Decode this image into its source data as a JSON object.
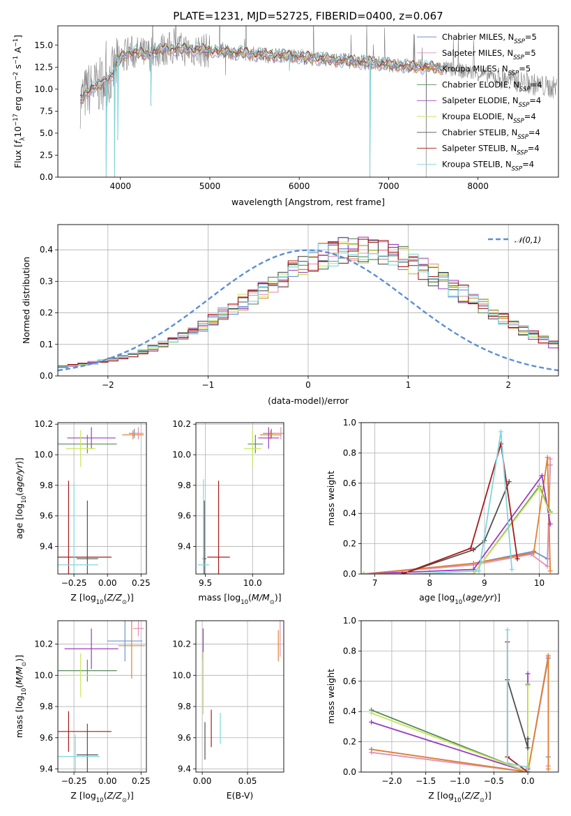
{
  "colors": {
    "chabrier_miles": "#6f8fd0",
    "salpeter_miles": "#e58fb2",
    "kroupa_miles": "#e0812f",
    "chabrier_elodie": "#5a8a5a",
    "salpeter_elodie": "#9a3cbf",
    "kroupa_elodie": "#c8e65a",
    "chabrier_stelib": "#505050",
    "salpeter_stelib": "#a81818",
    "kroupa_stelib": "#7fd6de",
    "normal": "#5b8ed6",
    "grid": "#b0b0b0"
  },
  "chart_data": [
    {
      "type": "line",
      "title": "PLATE=1231, MJD=52725, FIBERID=0400, z=0.067",
      "xlabel": "wavelength [Angstrom, rest frame]",
      "ylabel": "Flux [f_λ 10^-17 erg cm^-2 s^-1 A^-1]",
      "xlim": [
        3300,
        8900
      ],
      "ylim": [
        0,
        17.2
      ],
      "xticks": [
        "4000",
        "5000",
        "6000",
        "7000",
        "8000"
      ],
      "yticks": [
        "0.0",
        "2.5",
        "5.0",
        "7.5",
        "10.0",
        "12.5",
        "15.0"
      ],
      "grid": false,
      "legend_position": "upper-right",
      "legend": [
        {
          "label": "Chabrier MILES, N_SSP=5",
          "color_key": "chabrier_miles"
        },
        {
          "label": "Salpeter MILES, N_SSP=5",
          "color_key": "salpeter_miles"
        },
        {
          "label": "Kroupa MILES, N_SSP=5",
          "color_key": "kroupa_miles"
        },
        {
          "label": "Chabrier ELODIE, N_SSP=4",
          "color_key": "chabrier_elodie"
        },
        {
          "label": "Salpeter ELODIE, N_SSP=4",
          "color_key": "salpeter_elodie"
        },
        {
          "label": "Kroupa ELODIE, N_SSP=4",
          "color_key": "kroupa_elodie"
        },
        {
          "label": "Chabrier STELIB, N_SSP=4",
          "color_key": "chabrier_stelib"
        },
        {
          "label": "Salpeter STELIB, N_SSP=4",
          "color_key": "salpeter_stelib"
        },
        {
          "label": "Kroupa STELIB, N_SSP=4",
          "color_key": "kroupa_stelib"
        }
      ],
      "continuum": [
        [
          3550,
          8.7
        ],
        [
          3650,
          10.0
        ],
        [
          3750,
          10.3
        ],
        [
          3900,
          11.5
        ],
        [
          4000,
          13.5
        ],
        [
          4100,
          14.2
        ],
        [
          4300,
          13.9
        ],
        [
          4500,
          14.6
        ],
        [
          4800,
          14.5
        ],
        [
          5200,
          14.2
        ],
        [
          5600,
          13.9
        ],
        [
          6000,
          13.7
        ],
        [
          6400,
          13.3
        ],
        [
          6800,
          13.0
        ],
        [
          7200,
          12.6
        ],
        [
          7600,
          12.4
        ],
        [
          8000,
          11.8
        ],
        [
          8400,
          11.0
        ],
        [
          8800,
          10.2
        ]
      ],
      "absorption_dips": [
        [
          3840,
          0.0
        ],
        [
          3934,
          0.0
        ],
        [
          3970,
          4.2
        ],
        [
          4340,
          8.1
        ],
        [
          5175,
          11.6
        ],
        [
          5890,
          12.1
        ],
        [
          6790,
          0.0
        ],
        [
          7420,
          0.0
        ]
      ]
    },
    {
      "type": "bar",
      "subtype": "step-histogram",
      "xlabel": "(data-model)/error",
      "ylabel": "Normed distribution",
      "xlim": [
        -2.5,
        2.5
      ],
      "ylim": [
        0,
        0.48
      ],
      "xticks": [
        "−2",
        "−1",
        "0",
        "1",
        "2"
      ],
      "yticks": [
        "0.0",
        "0.1",
        "0.2",
        "0.3",
        "0.4"
      ],
      "grid": true,
      "legend_position": "upper-right",
      "reference_curve_label": "𝒩(0,1)",
      "bin_width": 0.1,
      "bin_start": -2.5,
      "base_counts": [
        0.03,
        0.033,
        0.037,
        0.042,
        0.047,
        0.053,
        0.06,
        0.068,
        0.077,
        0.088,
        0.1,
        0.112,
        0.126,
        0.141,
        0.158,
        0.176,
        0.195,
        0.215,
        0.235,
        0.255,
        0.275,
        0.295,
        0.315,
        0.335,
        0.352,
        0.367,
        0.38,
        0.39,
        0.397,
        0.4,
        0.4,
        0.398,
        0.392,
        0.383,
        0.37,
        0.355,
        0.338,
        0.32,
        0.3,
        0.28,
        0.26,
        0.24,
        0.22,
        0.2,
        0.18,
        0.162,
        0.145,
        0.13,
        0.115,
        0.1,
        0.088
      ]
    },
    {
      "type": "scatter",
      "subtype": "errorbar",
      "xlabel": "Z [log10(Z/Z⊙)]",
      "ylabel": "age [log10(age/yr)]",
      "xlim": [
        -0.37,
        0.29
      ],
      "ylim": [
        9.22,
        10.21
      ],
      "xticks": [
        "−0.25",
        "0.00",
        "0.25"
      ],
      "yticks": [
        "9.4",
        "9.6",
        "9.8",
        "10.0",
        "10.2"
      ],
      "grid": true,
      "points": [
        {
          "model": "chabrier_miles",
          "x": 0.2,
          "y": 10.14,
          "xerr": 0.04,
          "yerr": 0.03
        },
        {
          "model": "salpeter_miles",
          "x": 0.23,
          "y": 10.14,
          "xerr": 0.04,
          "yerr": 0.04
        },
        {
          "model": "kroupa_miles",
          "x": 0.19,
          "y": 10.13,
          "xerr": 0.08,
          "yerr": 0.03
        },
        {
          "model": "chabrier_elodie",
          "x": -0.15,
          "y": 10.07,
          "xerr": 0.22,
          "yerr": 0.06
        },
        {
          "model": "salpeter_elodie",
          "x": -0.12,
          "y": 10.11,
          "xerr": 0.18,
          "yerr": 0.07
        },
        {
          "model": "kroupa_elodie",
          "x": -0.2,
          "y": 10.04,
          "xerr": 0.11,
          "yerr": 0.12
        },
        {
          "model": "chabrier_stelib",
          "x": -0.15,
          "y": 9.32,
          "xerr": 0.08,
          "yerr": 0.38
        },
        {
          "model": "salpeter_stelib",
          "x": -0.29,
          "y": 9.33,
          "xerr": 0.32,
          "yerr": 0.5
        },
        {
          "model": "kroupa_stelib",
          "x": -0.25,
          "y": 9.28,
          "xerr": 0.18,
          "yerr": 0.54
        }
      ]
    },
    {
      "type": "scatter",
      "subtype": "errorbar",
      "xlabel": "mass [log10(M/M⊙)]",
      "ylabel": "",
      "xlim": [
        9.4,
        10.33
      ],
      "ylim": [
        9.22,
        10.21
      ],
      "xticks": [
        "9.5",
        "10.0"
      ],
      "yticks": [
        "9.4",
        "9.6",
        "9.8",
        "10.0",
        "10.2"
      ],
      "grid": true,
      "points": [
        {
          "model": "chabrier_miles",
          "x": 10.2,
          "y": 10.14,
          "xerr": 0.09,
          "yerr": 0.03
        },
        {
          "model": "salpeter_miles",
          "x": 10.3,
          "y": 10.14,
          "xerr": 0.08,
          "yerr": 0.04
        },
        {
          "model": "kroupa_miles",
          "x": 10.19,
          "y": 10.13,
          "xerr": 0.11,
          "yerr": 0.03
        },
        {
          "model": "chabrier_elodie",
          "x": 10.03,
          "y": 10.07,
          "xerr": 0.08,
          "yerr": 0.06
        },
        {
          "model": "salpeter_elodie",
          "x": 10.17,
          "y": 10.11,
          "xerr": 0.11,
          "yerr": 0.07
        },
        {
          "model": "kroupa_elodie",
          "x": 10.0,
          "y": 10.04,
          "xerr": 0.09,
          "yerr": 0.12
        },
        {
          "model": "chabrier_stelib",
          "x": 9.49,
          "y": 9.32,
          "xerr": 0.02,
          "yerr": 0.38
        },
        {
          "model": "salpeter_stelib",
          "x": 9.64,
          "y": 9.33,
          "xerr": 0.12,
          "yerr": 0.5
        },
        {
          "model": "kroupa_stelib",
          "x": 9.48,
          "y": 9.28,
          "xerr": 0.06,
          "yerr": 0.56
        }
      ]
    },
    {
      "type": "line",
      "xlabel": "age [log10(age/yr)]",
      "ylabel": "mass weight",
      "xlim": [
        6.75,
        10.35
      ],
      "ylim": [
        0,
        1.0
      ],
      "xticks": [
        "7",
        "8",
        "9",
        "10"
      ],
      "yticks": [
        "0.0",
        "0.2",
        "0.4",
        "0.6",
        "0.8",
        "1.0"
      ],
      "grid": true,
      "series": [
        {
          "model": "chabrier_miles",
          "x": [
            6.8,
            8.8,
            9.9,
            10.15,
            10.2
          ],
          "y": [
            0.0,
            0.07,
            0.15,
            0.1,
            0.72
          ]
        },
        {
          "model": "salpeter_miles",
          "x": [
            6.8,
            8.8,
            9.85,
            10.15,
            10.2
          ],
          "y": [
            0.0,
            0.06,
            0.13,
            0.05,
            0.76
          ]
        },
        {
          "model": "kroupa_miles",
          "x": [
            6.8,
            8.8,
            9.9,
            10.15,
            10.2
          ],
          "y": [
            0.0,
            0.07,
            0.14,
            0.77,
            0.02
          ]
        },
        {
          "model": "chabrier_elodie",
          "x": [
            6.8,
            8.8,
            10.0,
            10.2
          ],
          "y": [
            0.0,
            0.0,
            0.58,
            0.41
          ]
        },
        {
          "model": "salpeter_elodie",
          "x": [
            6.8,
            8.8,
            10.05,
            10.2
          ],
          "y": [
            0.0,
            0.03,
            0.65,
            0.33
          ]
        },
        {
          "model": "kroupa_elodie",
          "x": [
            6.8,
            8.8,
            10.0,
            10.2
          ],
          "y": [
            0.0,
            0.0,
            0.57,
            0.4
          ]
        },
        {
          "model": "chabrier_stelib",
          "x": [
            7.5,
            8.8,
            9.0,
            9.45
          ],
          "y": [
            0.0,
            0.16,
            0.22,
            0.61
          ]
        },
        {
          "model": "salpeter_stelib",
          "x": [
            7.5,
            8.75,
            9.3,
            9.6
          ],
          "y": [
            0.0,
            0.17,
            0.86,
            0.1
          ]
        },
        {
          "model": "kroupa_stelib",
          "x": [
            7.6,
            8.9,
            9.3,
            9.5
          ],
          "y": [
            0.0,
            0.02,
            0.94,
            0.03
          ]
        }
      ]
    },
    {
      "type": "scatter",
      "subtype": "errorbar",
      "xlabel": "Z [log10(Z/Z⊙)]",
      "ylabel": "mass [log10(M/M⊙)]",
      "xlim": [
        -0.37,
        0.29
      ],
      "ylim": [
        9.38,
        10.35
      ],
      "xticks": [
        "−0.25",
        "0.00",
        "0.25"
      ],
      "yticks": [
        "9.4",
        "9.6",
        "9.8",
        "10.0",
        "10.2"
      ],
      "grid": true,
      "points": [
        {
          "model": "chabrier_miles",
          "x": 0.13,
          "y": 10.22,
          "xerr": 0.13,
          "yerr": 0.13
        },
        {
          "model": "salpeter_miles",
          "x": 0.23,
          "y": 10.3,
          "xerr": 0.04,
          "yerr": 0.05
        },
        {
          "model": "kroupa_miles",
          "x": 0.18,
          "y": 10.19,
          "xerr": 0.1,
          "yerr": 0.21
        },
        {
          "model": "chabrier_elodie",
          "x": -0.15,
          "y": 10.03,
          "xerr": 0.22,
          "yerr": 0.07
        },
        {
          "model": "salpeter_elodie",
          "x": -0.12,
          "y": 10.17,
          "xerr": 0.2,
          "yerr": 0.13
        },
        {
          "model": "kroupa_elodie",
          "x": -0.2,
          "y": 10.0,
          "xerr": 0.11,
          "yerr": 0.14
        },
        {
          "model": "chabrier_stelib",
          "x": -0.15,
          "y": 9.49,
          "xerr": 0.08,
          "yerr": 0.2
        },
        {
          "model": "salpeter_stelib",
          "x": -0.29,
          "y": 9.64,
          "xerr": 0.32,
          "yerr": 0.13
        },
        {
          "model": "kroupa_stelib",
          "x": -0.24,
          "y": 9.48,
          "xerr": 0.18,
          "yerr": 0.14
        }
      ]
    },
    {
      "type": "scatter",
      "subtype": "errorbar",
      "xlabel": "E(B-V)",
      "ylabel": "",
      "xlim": [
        -0.007,
        0.09
      ],
      "ylim": [
        9.38,
        10.35
      ],
      "xticks": [
        "0.00",
        "0.05"
      ],
      "yticks": [
        "9.4",
        "9.6",
        "9.8",
        "10.0",
        "10.2"
      ],
      "grid": true,
      "points": [
        {
          "model": "salpeter_miles",
          "x": 0.086,
          "y": 10.24,
          "xerr": 0.0,
          "yerr": 0.12
        },
        {
          "model": "kroupa_miles",
          "x": 0.084,
          "y": 10.19,
          "xerr": 0.0,
          "yerr": 0.1
        },
        {
          "model": "salpeter_elodie",
          "x": 0.001,
          "y": 10.2,
          "xerr": 0.0,
          "yerr": 0.1
        },
        {
          "model": "kroupa_elodie",
          "x": 0.001,
          "y": 9.95,
          "xerr": 0.0,
          "yerr": 0.2
        },
        {
          "model": "chabrier_stelib",
          "x": 0.003,
          "y": 9.58,
          "xerr": 0.0,
          "yerr": 0.12
        },
        {
          "model": "salpeter_stelib",
          "x": 0.01,
          "y": 9.66,
          "xerr": 0.0,
          "yerr": 0.12
        },
        {
          "model": "kroupa_stelib",
          "x": 0.02,
          "y": 9.66,
          "xerr": 0.0,
          "yerr": 0.1
        }
      ]
    },
    {
      "type": "line",
      "xlabel": "Z [log10(Z/Z⊙)]",
      "ylabel": "mass weight",
      "xlim": [
        -2.45,
        0.45
      ],
      "ylim": [
        0,
        1.0
      ],
      "xticks": [
        "−2.0",
        "−1.5",
        "−1.0",
        "−0.5",
        "0.0"
      ],
      "yticks": [
        "0.0",
        "0.2",
        "0.4",
        "0.6",
        "0.8",
        "1.0"
      ],
      "grid": true,
      "series": [
        {
          "model": "chabrier_miles",
          "x": [
            -2.3,
            0.0,
            0.0,
            0.3,
            0.3
          ],
          "y": [
            0.15,
            0.0,
            0.0,
            0.75,
            0.1
          ]
        },
        {
          "model": "salpeter_miles",
          "x": [
            -2.3,
            0.0,
            0.3,
            0.3
          ],
          "y": [
            0.13,
            0.0,
            0.76,
            0.04
          ]
        },
        {
          "model": "kroupa_miles",
          "x": [
            -2.3,
            0.0,
            0.3,
            0.3
          ],
          "y": [
            0.15,
            0.0,
            0.77,
            0.02
          ]
        },
        {
          "model": "chabrier_elodie",
          "x": [
            -2.3,
            0.0,
            0.0,
            0.0
          ],
          "y": [
            0.41,
            0.0,
            0.58,
            0.0
          ]
        },
        {
          "model": "salpeter_elodie",
          "x": [
            -2.3,
            0.0,
            0.0,
            0.0
          ],
          "y": [
            0.33,
            0.0,
            0.65,
            0.02
          ]
        },
        {
          "model": "kroupa_elodie",
          "x": [
            -2.3,
            0.0,
            0.0,
            0.0
          ],
          "y": [
            0.39,
            0.0,
            0.57,
            0.04
          ]
        },
        {
          "model": "chabrier_stelib",
          "x": [
            -0.3,
            0.0,
            0.0
          ],
          "y": [
            0.61,
            0.16,
            0.22
          ]
        },
        {
          "model": "salpeter_stelib",
          "x": [
            -0.3,
            -0.3,
            0.0,
            0.0
          ],
          "y": [
            0.86,
            0.1,
            0.0,
            0.0
          ]
        },
        {
          "model": "kroupa_stelib",
          "x": [
            -0.3,
            -0.3,
            0.0,
            0.0
          ],
          "y": [
            0.94,
            0.06,
            0.03,
            0.0
          ]
        }
      ]
    }
  ]
}
